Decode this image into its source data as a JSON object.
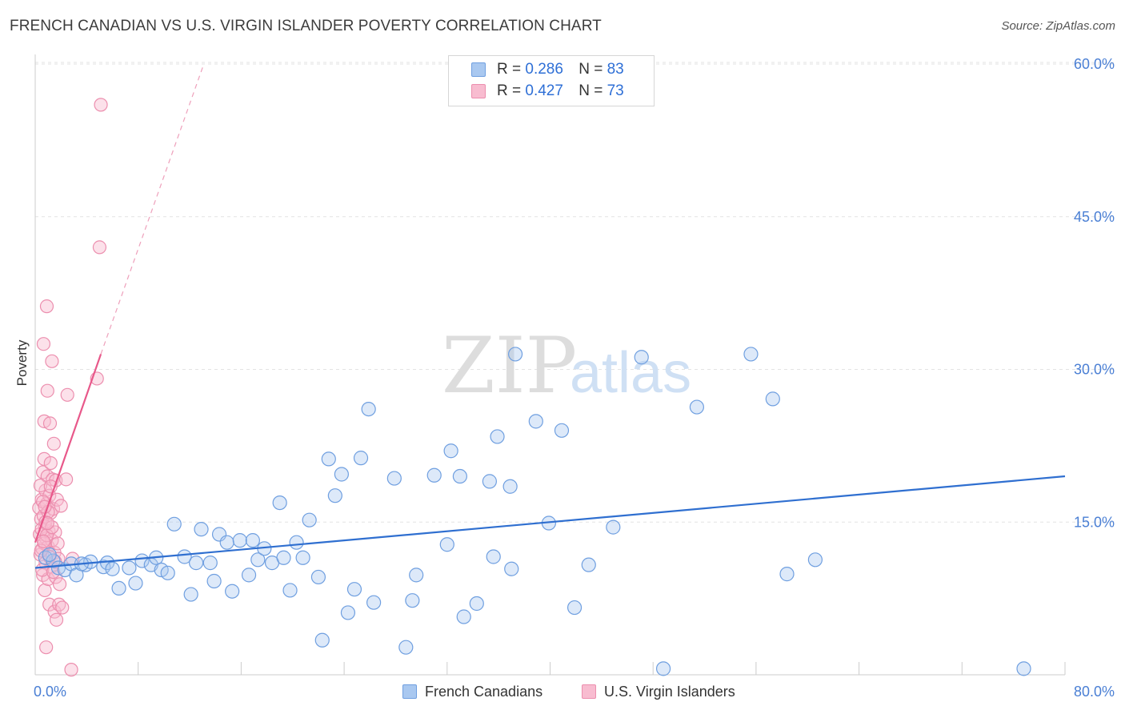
{
  "header": {
    "title": "FRENCH CANADIAN VS U.S. VIRGIN ISLANDER POVERTY CORRELATION CHART",
    "source": "Source: ZipAtlas.com"
  },
  "legend": {
    "r_label": "R =",
    "n_label": "N =",
    "items": [
      {
        "r": "0.286",
        "n": "83",
        "fill": "#a9c8f0",
        "stroke": "#6f9fe0"
      },
      {
        "r": "0.427",
        "n": "73",
        "fill": "#f8bcd0",
        "stroke": "#ec8eae"
      }
    ]
  },
  "bottom_legend": [
    {
      "label": "French Canadians",
      "fill": "#a9c8f0",
      "stroke": "#6f9fe0"
    },
    {
      "label": "U.S. Virgin Islanders",
      "fill": "#f8bcd0",
      "stroke": "#ec8eae"
    }
  ],
  "watermark": {
    "zip": "ZIP",
    "atlas": "atlas"
  },
  "chart_data": {
    "type": "scatter",
    "title": "FRENCH CANADIAN VS U.S. VIRGIN ISLANDER POVERTY CORRELATION CHART",
    "xlabel": "",
    "ylabel": "Poverty",
    "xlim": [
      0,
      80
    ],
    "ylim": [
      0,
      60
    ],
    "x_tick_labels": [
      "0.0%",
      "80.0%"
    ],
    "y_ticks": [
      15,
      30,
      45,
      60
    ],
    "y_tick_labels": [
      "15.0%",
      "30.0%",
      "45.0%",
      "60.0%"
    ],
    "grid": true,
    "legend_position": "top-center",
    "series": [
      {
        "name": "French Canadians",
        "color": "#6f9fe0",
        "fill": "#a9c8f0",
        "trend": {
          "x0": 0,
          "y0": 10.5,
          "x1": 80,
          "y1": 19.5
        },
        "points": [
          [
            0.8,
            11.5
          ],
          [
            1.4,
            11.2
          ],
          [
            1.8,
            10.5
          ],
          [
            2.3,
            10.3
          ],
          [
            2.8,
            10.9
          ],
          [
            3.2,
            9.8
          ],
          [
            3.9,
            10.8
          ],
          [
            4.3,
            11.1
          ],
          [
            5.3,
            10.6
          ],
          [
            5.6,
            11.0
          ],
          [
            6.5,
            8.5
          ],
          [
            7.3,
            10.5
          ],
          [
            7.8,
            9.0
          ],
          [
            8.3,
            11.2
          ],
          [
            9.0,
            10.8
          ],
          [
            9.4,
            11.5
          ],
          [
            9.8,
            10.3
          ],
          [
            10.3,
            10.0
          ],
          [
            10.8,
            14.8
          ],
          [
            11.6,
            11.6
          ],
          [
            12.1,
            7.9
          ],
          [
            12.5,
            11.0
          ],
          [
            12.9,
            14.3
          ],
          [
            13.6,
            11.0
          ],
          [
            13.9,
            9.2
          ],
          [
            14.3,
            13.8
          ],
          [
            14.9,
            13.0
          ],
          [
            15.3,
            8.2
          ],
          [
            15.9,
            13.2
          ],
          [
            16.6,
            9.8
          ],
          [
            16.9,
            13.2
          ],
          [
            17.3,
            11.3
          ],
          [
            17.8,
            12.4
          ],
          [
            18.4,
            11.0
          ],
          [
            19.0,
            16.9
          ],
          [
            19.3,
            11.5
          ],
          [
            19.8,
            8.3
          ],
          [
            20.3,
            13.0
          ],
          [
            20.8,
            11.5
          ],
          [
            21.3,
            15.2
          ],
          [
            22.0,
            9.6
          ],
          [
            22.3,
            3.4
          ],
          [
            22.8,
            21.2
          ],
          [
            23.3,
            17.6
          ],
          [
            23.8,
            19.7
          ],
          [
            24.3,
            6.1
          ],
          [
            24.8,
            8.4
          ],
          [
            25.3,
            21.3
          ],
          [
            25.9,
            26.1
          ],
          [
            26.3,
            7.1
          ],
          [
            27.9,
            19.3
          ],
          [
            28.8,
            2.7
          ],
          [
            29.3,
            7.3
          ],
          [
            29.6,
            9.8
          ],
          [
            31.0,
            19.6
          ],
          [
            32.0,
            12.8
          ],
          [
            32.3,
            22.0
          ],
          [
            33.0,
            19.5
          ],
          [
            33.3,
            5.7
          ],
          [
            34.3,
            7.0
          ],
          [
            35.3,
            19.0
          ],
          [
            35.6,
            11.6
          ],
          [
            35.9,
            23.4
          ],
          [
            36.9,
            18.5
          ],
          [
            37.0,
            10.4
          ],
          [
            37.3,
            31.5
          ],
          [
            38.9,
            24.9
          ],
          [
            39.9,
            14.9
          ],
          [
            40.9,
            24.0
          ],
          [
            41.9,
            6.6
          ],
          [
            43.0,
            10.8
          ],
          [
            44.9,
            14.5
          ],
          [
            47.1,
            31.2
          ],
          [
            48.8,
            0.6
          ],
          [
            51.4,
            26.3
          ],
          [
            55.6,
            31.5
          ],
          [
            57.3,
            27.1
          ],
          [
            58.4,
            9.9
          ],
          [
            60.6,
            11.3
          ],
          [
            76.8,
            0.6
          ],
          [
            1.1,
            11.8
          ],
          [
            3.6,
            10.9
          ],
          [
            6.0,
            10.4
          ]
        ]
      },
      {
        "name": "U.S. Virgin Islanders",
        "color": "#e8588a",
        "fill": "#f8bcd0",
        "trend": {
          "x0": 0,
          "y0": 13.0,
          "x1": 5.1,
          "y1": 31.5,
          "dash_x1": 13.1,
          "dash_y1": 60.0
        },
        "points": [
          [
            0.3,
            16.4
          ],
          [
            0.35,
            13.8
          ],
          [
            0.4,
            11.8
          ],
          [
            0.45,
            15.3
          ],
          [
            0.5,
            17.2
          ],
          [
            0.55,
            12.4
          ],
          [
            0.6,
            19.9
          ],
          [
            0.6,
            9.8
          ],
          [
            0.65,
            15.6
          ],
          [
            0.65,
            32.5
          ],
          [
            0.7,
            21.2
          ],
          [
            0.7,
            24.9
          ],
          [
            0.75,
            14.6
          ],
          [
            0.75,
            8.3
          ],
          [
            0.8,
            18.1
          ],
          [
            0.8,
            11.0
          ],
          [
            0.85,
            13.4
          ],
          [
            0.85,
            2.7
          ],
          [
            0.9,
            36.2
          ],
          [
            0.9,
            16.8
          ],
          [
            0.95,
            27.9
          ],
          [
            0.95,
            19.5
          ],
          [
            1.0,
            12.6
          ],
          [
            1.0,
            9.4
          ],
          [
            1.05,
            14.1
          ],
          [
            1.1,
            17.6
          ],
          [
            1.1,
            6.9
          ],
          [
            1.15,
            24.7
          ],
          [
            1.2,
            20.8
          ],
          [
            1.2,
            15.9
          ],
          [
            1.25,
            10.6
          ],
          [
            1.3,
            13.2
          ],
          [
            1.3,
            30.8
          ],
          [
            1.35,
            19.2
          ],
          [
            1.4,
            16.3
          ],
          [
            1.45,
            22.7
          ],
          [
            1.5,
            12.0
          ],
          [
            1.5,
            6.2
          ],
          [
            1.55,
            14.0
          ],
          [
            1.6,
            9.6
          ],
          [
            1.6,
            19.1
          ],
          [
            1.65,
            5.4
          ],
          [
            1.7,
            17.2
          ],
          [
            1.8,
            11.4
          ],
          [
            1.85,
            6.9
          ],
          [
            1.9,
            8.9
          ],
          [
            2.0,
            16.6
          ],
          [
            2.1,
            6.6
          ],
          [
            2.4,
            19.2
          ],
          [
            2.5,
            27.5
          ],
          [
            2.9,
            11.4
          ],
          [
            4.8,
            29.1
          ],
          [
            5.1,
            56.0
          ],
          [
            5.0,
            42.0
          ],
          [
            2.8,
            0.5
          ],
          [
            0.4,
            18.6
          ],
          [
            0.5,
            14.3
          ],
          [
            0.55,
            10.3
          ],
          [
            0.6,
            17.0
          ],
          [
            0.7,
            12.9
          ],
          [
            0.8,
            15.0
          ],
          [
            0.9,
            13.7
          ],
          [
            1.0,
            16.0
          ],
          [
            1.1,
            11.6
          ],
          [
            1.2,
            18.5
          ],
          [
            1.3,
            14.5
          ],
          [
            1.4,
            10.1
          ],
          [
            0.45,
            12.2
          ],
          [
            0.65,
            13.1
          ],
          [
            0.75,
            16.5
          ],
          [
            1.55,
            11.1
          ],
          [
            1.75,
            12.9
          ],
          [
            0.95,
            14.9
          ]
        ]
      }
    ]
  }
}
